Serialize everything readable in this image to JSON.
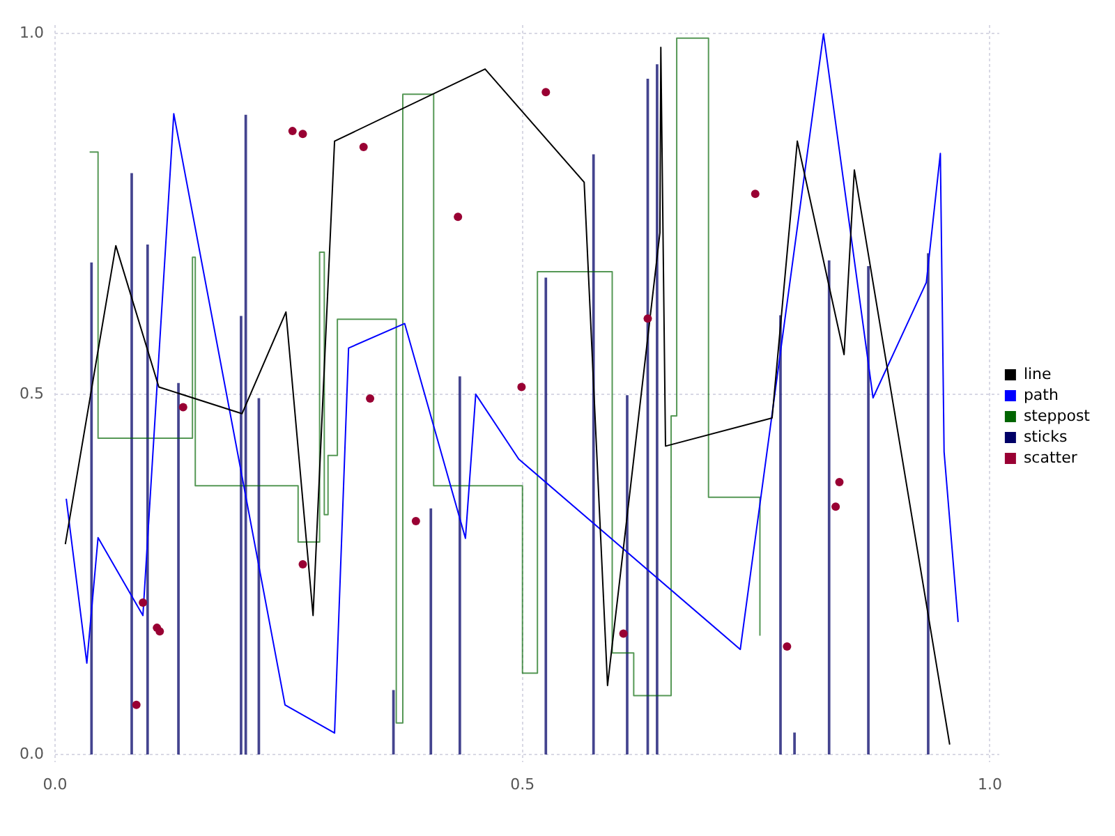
{
  "chart_data": {
    "type": "line",
    "xlim": [
      0,
      1.01
    ],
    "ylim": [
      -0.01,
      1.012
    ],
    "xticks": [
      {
        "value": 0,
        "label": "0.0"
      },
      {
        "value": 0.5,
        "label": "0.5"
      },
      {
        "value": 1,
        "label": "1.0"
      }
    ],
    "yticks": [
      {
        "value": 0,
        "label": "0.0"
      },
      {
        "value": 0.5,
        "label": "0.5"
      },
      {
        "value": 1,
        "label": "1.0"
      }
    ],
    "grid": true,
    "legend": "right",
    "series": [
      {
        "name": "line",
        "marker": "none",
        "color": "#000000",
        "x": [
          0.011,
          0.065,
          0.111,
          0.2,
          0.247,
          0.276,
          0.299,
          0.46,
          0.566,
          0.591,
          0.647,
          0.648,
          0.653,
          0.767,
          0.794,
          0.844,
          0.855,
          0.957
        ],
        "values": [
          0.292,
          0.706,
          0.51,
          0.473,
          0.614,
          0.193,
          0.851,
          0.951,
          0.794,
          0.096,
          0.724,
          0.981,
          0.428,
          0.467,
          0.851,
          0.555,
          0.811,
          0.014
        ]
      },
      {
        "name": "path",
        "marker": "none",
        "color": "#0000ff",
        "x": [
          0.012,
          0.034,
          0.046,
          0.094,
          0.127,
          0.246,
          0.299,
          0.314,
          0.374,
          0.439,
          0.45,
          0.496,
          0.733,
          0.822,
          0.875,
          0.932,
          0.947,
          0.951,
          0.966
        ],
        "values": [
          0.355,
          0.127,
          0.301,
          0.193,
          0.889,
          0.069,
          0.03,
          0.564,
          0.598,
          0.3,
          0.5,
          0.41,
          0.146,
          1.0,
          0.495,
          0.655,
          0.834,
          0.42,
          0.184
        ]
      },
      {
        "name": "steppost",
        "type": "step",
        "marker": "none",
        "color": "#006400",
        "x": [
          0.037,
          0.046,
          0.147,
          0.15,
          0.26,
          0.283,
          0.288,
          0.292,
          0.302,
          0.365,
          0.372,
          0.405,
          0.5,
          0.516,
          0.596,
          0.619,
          0.659,
          0.665,
          0.699,
          0.754
        ],
        "values": [
          0.836,
          0.439,
          0.69,
          0.373,
          0.295,
          0.697,
          0.333,
          0.415,
          0.604,
          0.044,
          0.916,
          0.373,
          0.113,
          0.67,
          0.141,
          0.082,
          0.47,
          0.994,
          0.357,
          0.165
        ]
      },
      {
        "name": "sticks",
        "type": "bar",
        "color": "#000066",
        "x": [
          0.039,
          0.082,
          0.099,
          0.132,
          0.199,
          0.204,
          0.218,
          0.362,
          0.402,
          0.433,
          0.525,
          0.576,
          0.612,
          0.634,
          0.644,
          0.776,
          0.791,
          0.828,
          0.87,
          0.934
        ],
        "values": [
          0.682,
          0.806,
          0.707,
          0.515,
          0.608,
          0.887,
          0.494,
          0.089,
          0.341,
          0.524,
          0.661,
          0.832,
          0.498,
          0.937,
          0.957,
          0.609,
          0.03,
          0.685,
          0.677,
          0.695
        ]
      },
      {
        "name": "scatter",
        "type": "scatter",
        "marker": "circle",
        "color": "#990033",
        "x": [
          0.087,
          0.094,
          0.109,
          0.112,
          0.137,
          0.265,
          0.254,
          0.265,
          0.33,
          0.337,
          0.431,
          0.525,
          0.499,
          0.634,
          0.386,
          0.608,
          0.749,
          0.783,
          0.839,
          0.835
        ],
        "values": [
          0.069,
          0.211,
          0.176,
          0.171,
          0.482,
          0.264,
          0.865,
          0.861,
          0.843,
          0.494,
          0.746,
          0.919,
          0.51,
          0.605,
          0.324,
          0.168,
          0.778,
          0.15,
          0.378,
          0.344
        ]
      }
    ]
  }
}
